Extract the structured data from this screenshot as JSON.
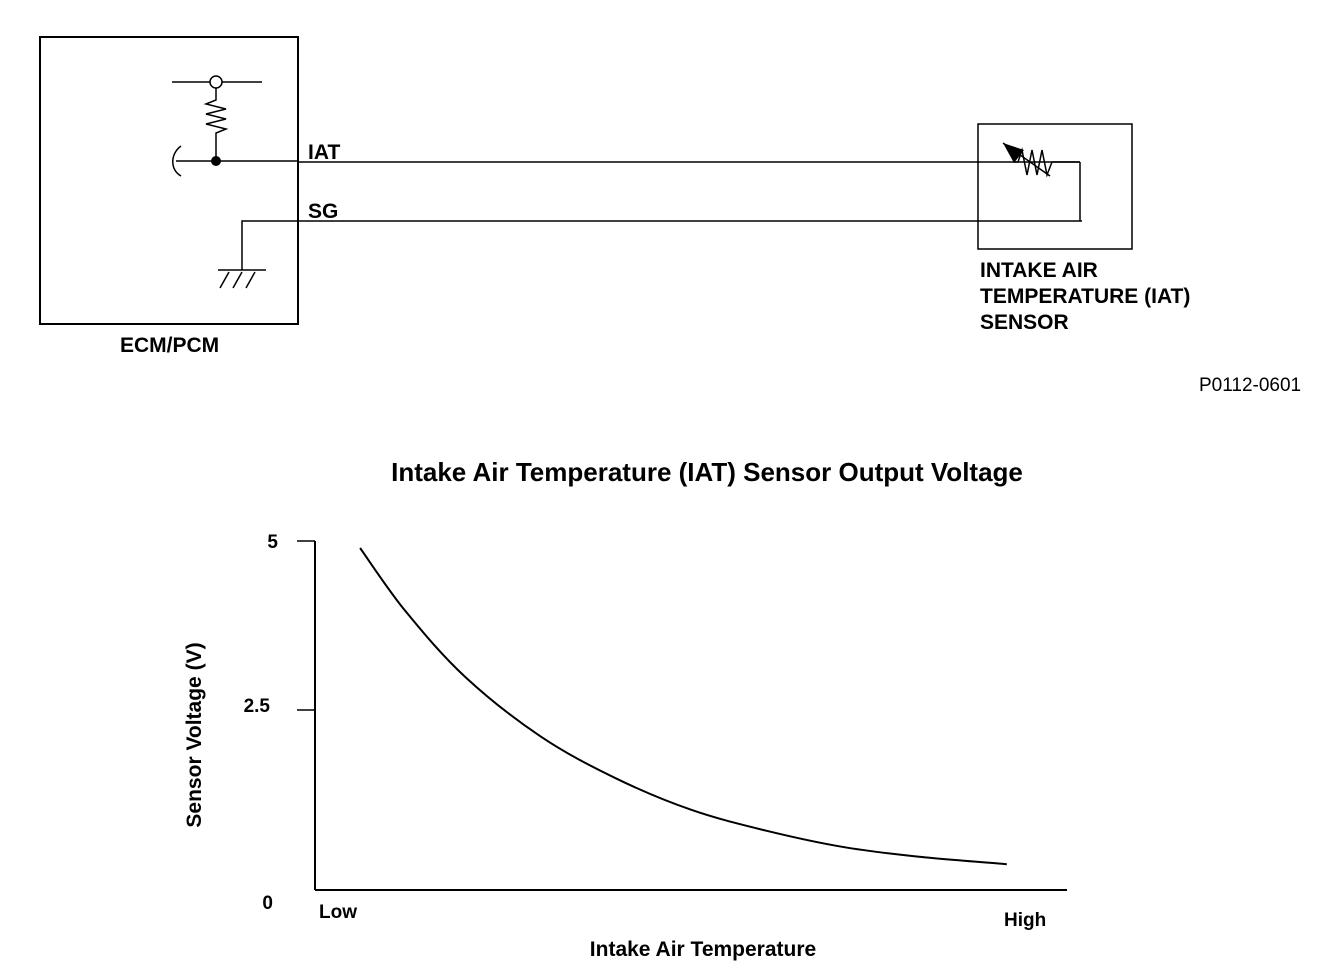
{
  "schematic": {
    "ecm_label": "ECM/PCM",
    "iat_wire_label": "IAT",
    "sg_wire_label": "SG",
    "sensor_label_lines": [
      "INTAKE AIR",
      "TEMPERATURE (IAT)",
      "SENSOR"
    ],
    "reference_code": "P0112-0601"
  },
  "chart_data": {
    "type": "line",
    "title": "Intake Air Temperature (IAT) Sensor Output Voltage",
    "xlabel": "Intake Air Temperature",
    "ylabel": "Sensor Voltage (V)",
    "x_tick_labels": [
      "Low",
      "High"
    ],
    "y_ticks": [
      0,
      2.5,
      5
    ],
    "y_tick_labels": [
      "0",
      "2.5",
      "5"
    ],
    "ylim": [
      0,
      5
    ],
    "xlim": [
      0,
      1
    ],
    "grid": false,
    "series": [
      {
        "x": [
          0.06,
          0.12,
          0.2,
          0.3,
          0.4,
          0.5,
          0.6,
          0.7,
          0.8,
          0.92
        ],
        "values": [
          4.9,
          4.0,
          3.05,
          2.2,
          1.6,
          1.15,
          0.85,
          0.62,
          0.48,
          0.37
        ]
      }
    ],
    "line_color": "#000000"
  }
}
